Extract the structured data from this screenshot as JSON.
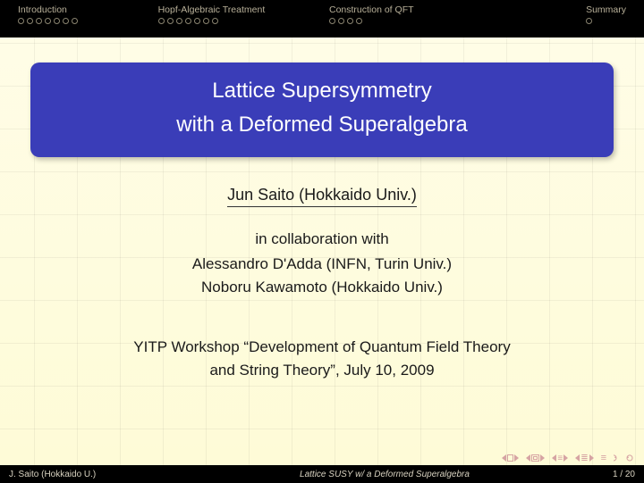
{
  "nav": {
    "sections": [
      {
        "label": "Introduction",
        "dots": 7,
        "filled": 0
      },
      {
        "label": "Hopf-Algebraic Treatment",
        "dots": 7,
        "filled": 0
      },
      {
        "label": "Construction of QFT",
        "dots": 4,
        "filled": 0
      },
      {
        "label": "Summary",
        "dots": 1,
        "filled": 0
      }
    ]
  },
  "title": {
    "line1": "Lattice Supersymmetry",
    "line2": "with a Deformed Superalgebra",
    "bg_color": "#3a3db8",
    "text_color": "#ffffff"
  },
  "author": "Jun Saito (Hokkaido Univ.)",
  "collab": {
    "label": "in collaboration with",
    "names": [
      "Alessandro D'Adda (INFN, Turin Univ.)",
      "Noboru Kawamoto (Hokkaido Univ.)"
    ]
  },
  "workshop": {
    "line1": "YITP Workshop “Development of Quantum Field Theory",
    "line2": "and String Theory”, July 10, 2009"
  },
  "footer": {
    "left": "J. Saito    (Hokkaido U.)",
    "center": "Lattice SUSY w/ a Deformed Superalgebra",
    "right": "1 / 20"
  },
  "colors": {
    "background_top": "#fffde8",
    "background_bottom": "#fefbd6",
    "grid": "rgba(0,0,0,0.05)",
    "nav_bg": "#000000",
    "nav_text": "#b8b099",
    "navicon": "#d6a3a3",
    "footer_bg": "#000000",
    "footer_text": "#d8d2c0",
    "body_text": "#1a1a1a"
  }
}
